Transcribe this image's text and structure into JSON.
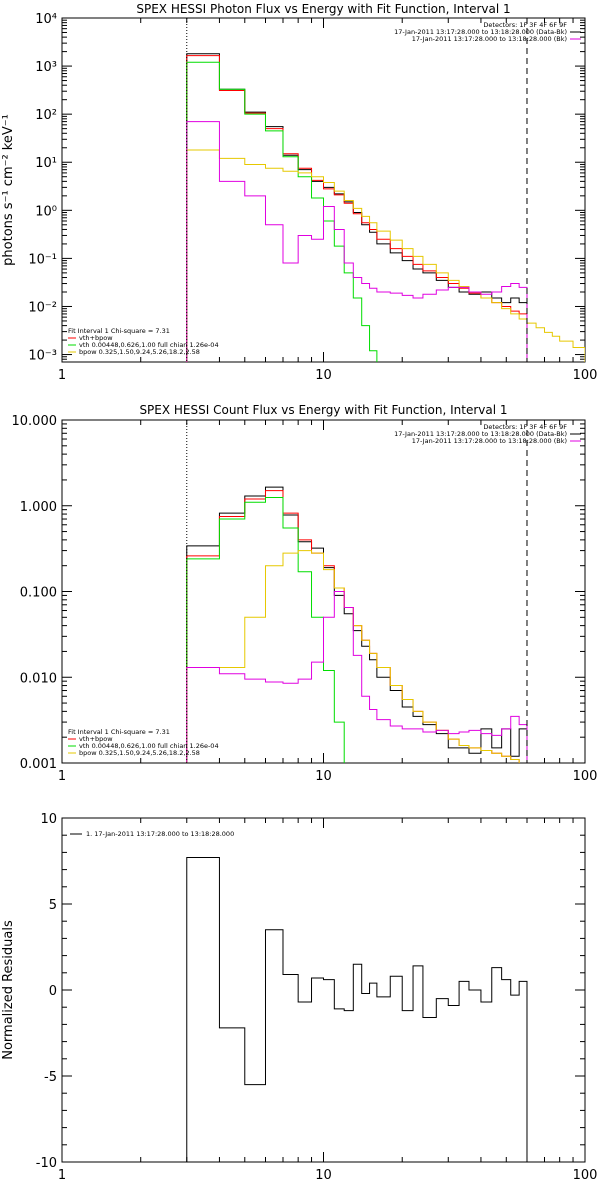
{
  "colors": {
    "total": "#000000",
    "fit_total": "#ff0000",
    "vth": "#00dd00",
    "bpow": "#e6c800",
    "background": "#e000e0",
    "axes": "#000000",
    "page": "#ffffff"
  },
  "chart_data": [
    {
      "type": "line",
      "style": "histogram",
      "title": "SPEX HESSI Photon Flux vs Energy with Fit Function, Interval 1",
      "xlabel": "",
      "ylabel": "photons s⁻¹ cm⁻² keV⁻¹",
      "xscale": "log",
      "yscale": "log",
      "xlim": [
        1,
        100
      ],
      "ylim": [
        0.0007,
        10000
      ],
      "x_ticks": [
        1,
        10,
        100
      ],
      "x_tick_labels": [
        "1",
        "10",
        "100"
      ],
      "y_ticks": [
        0.001,
        0.01,
        0.1,
        1,
        10,
        100,
        1000,
        10000
      ],
      "y_tick_labels": [
        "10⁻³",
        "10⁻²",
        "10⁻¹",
        "10⁰",
        "10¹",
        "10²",
        "10³",
        "10⁴"
      ],
      "bin_edges": [
        3,
        4,
        5,
        6,
        7,
        8,
        9,
        10,
        11,
        12,
        13,
        14,
        15,
        16,
        18,
        20,
        22,
        24,
        27,
        30,
        33,
        36,
        40,
        44,
        48,
        52,
        56,
        60,
        65,
        70,
        75,
        80,
        90,
        100
      ],
      "vlines": [
        {
          "x": 3,
          "style": "dotted"
        },
        {
          "x": 60,
          "style": "dashed"
        }
      ],
      "legend": {
        "position": "top-right",
        "header": "Detectors: 1F 3F 4F 6F 9F",
        "entries": [
          "17-Jan-2011 13:17:28.000 to 13:18:28.000 (Data-Bk)",
          "17-Jan-2011 13:17:28.000 to 13:18:28.000 (Bk)"
        ]
      },
      "fit_legend": {
        "position": "bottom-left",
        "header": "Fit Interval  1    Chi-square = 7.31",
        "entries": [
          "vth+bpow",
          "vth 0.00448,0.626,1.00   full chian 1.26e-04",
          "bpow 0.325,1.50,9.24,5.26,18.2,2.58"
        ]
      },
      "series": [
        {
          "name": "17-Jan-2011 13:17:28.000 to 13:18:28.000 (Data-Bk)",
          "color": "#000000",
          "values": [
            1800,
            330,
            110,
            55,
            14,
            7,
            4,
            3,
            2.2,
            1.5,
            0.9,
            0.5,
            0.35,
            0.2,
            0.13,
            0.09,
            0.06,
            0.05,
            0.035,
            0.025,
            0.02,
            0.018,
            0.02,
            0.015,
            0.012,
            0.015,
            0.012
          ]
        },
        {
          "name": "vth+bpow",
          "color": "#ff0000",
          "values": [
            1650,
            310,
            105,
            50,
            15,
            7.5,
            4.2,
            2.8,
            2.1,
            1.4,
            0.85,
            0.55,
            0.4,
            0.25,
            0.16,
            0.11,
            0.075,
            0.055,
            0.04,
            0.03,
            0.024,
            0.019,
            0.015,
            0.012,
            0.01,
            0.008,
            0.007
          ]
        },
        {
          "name": "vth",
          "color": "#00dd00",
          "values": [
            1200,
            330,
            100,
            45,
            13,
            5,
            1.8,
            0.6,
            0.18,
            0.05,
            0.015,
            0.004,
            0.0012,
            0.0003
          ]
        },
        {
          "name": "bpow",
          "color": "#e6c800",
          "values": [
            18,
            12,
            9,
            7.5,
            6.5,
            6,
            5,
            3.8,
            2.5,
            1.6,
            1.1,
            0.75,
            0.55,
            0.37,
            0.24,
            0.16,
            0.11,
            0.075,
            0.05,
            0.035,
            0.026,
            0.02,
            0.015,
            0.012,
            0.009,
            0.007,
            0.0055,
            0.0045,
            0.0036,
            0.0029,
            0.0024,
            0.0019,
            0.0014
          ]
        },
        {
          "name": "17-Jan-2011 13:17:28.000 to 13:18:28.000 (Bk)",
          "color": "#e000e0",
          "values": [
            70,
            4,
            2,
            0.5,
            0.08,
            0.3,
            0.25,
            1.2,
            0.4,
            0.08,
            0.04,
            0.03,
            0.024,
            0.02,
            0.019,
            0.017,
            0.015,
            0.018,
            0.022,
            0.025,
            0.025,
            0.02,
            0.018,
            0.02,
            0.026,
            0.03,
            0.025
          ]
        }
      ]
    },
    {
      "type": "line",
      "style": "histogram",
      "title": "SPEX HESSI Count Flux vs Energy with Fit Function, Interval 1",
      "xlabel": "",
      "ylabel": "",
      "xscale": "log",
      "yscale": "log",
      "xlim": [
        1,
        100
      ],
      "ylim": [
        0.001,
        10
      ],
      "x_ticks": [
        1,
        10,
        100
      ],
      "x_tick_labels": [
        "1",
        "10",
        "100"
      ],
      "y_ticks": [
        0.001,
        0.01,
        0.1,
        1,
        10
      ],
      "y_tick_labels": [
        "0.001",
        "0.010",
        "0.100",
        "1.000",
        "10.000"
      ],
      "bin_edges": [
        3,
        4,
        5,
        6,
        7,
        8,
        9,
        10,
        11,
        12,
        13,
        14,
        15,
        16,
        18,
        20,
        22,
        24,
        27,
        30,
        33,
        36,
        40,
        44,
        48,
        52,
        56,
        60
      ],
      "vlines": [
        {
          "x": 3,
          "style": "dotted"
        },
        {
          "x": 60,
          "style": "dashed"
        }
      ],
      "legend": {
        "position": "top-right",
        "header": "Detectors: 1F 3F 4F 6F 9F",
        "entries": [
          "17-Jan-2011 13:17:28.000 to 13:18:28.000 (Data-Bk)",
          "17-Jan-2011 13:17:28.000 to 13:18:28.000 (Bk)"
        ]
      },
      "fit_legend": {
        "position": "bottom-left",
        "header": "Fit Interval  1    Chi-square = 7.31",
        "entries": [
          "vth+bpow",
          "vth 0.00448,0.626,1.00   full chian 1.26e-04",
          "bpow 0.325,1.50,9.24,5.26,18.2,2.58"
        ]
      },
      "series": [
        {
          "name": "17-Jan-2011 13:17:28.000 to 13:18:28.000 (Data-Bk)",
          "color": "#000000",
          "values": [
            0.34,
            0.82,
            1.3,
            1.65,
            0.78,
            0.38,
            0.32,
            0.19,
            0.09,
            0.055,
            0.035,
            0.023,
            0.016,
            0.01,
            0.007,
            0.0045,
            0.0035,
            0.0028,
            0.0022,
            0.0015,
            0.0015,
            0.0013,
            0.0025,
            0.0015,
            0.0025,
            0.0012,
            0.0025
          ]
        },
        {
          "name": "vth+bpow",
          "color": "#ff0000",
          "values": [
            0.26,
            0.75,
            1.2,
            1.5,
            0.82,
            0.4,
            0.28,
            0.2,
            0.11,
            0.065,
            0.04,
            0.027,
            0.019,
            0.013,
            0.008,
            0.0055,
            0.004,
            0.003,
            0.0024,
            0.0019,
            0.0016,
            0.0015,
            0.0014,
            0.0013,
            0.0012,
            0.0011,
            0.001
          ]
        },
        {
          "name": "vth",
          "color": "#00dd00",
          "values": [
            0.24,
            0.7,
            1.1,
            1.25,
            0.55,
            0.17,
            0.05,
            0.012,
            0.003,
            0.0009
          ]
        },
        {
          "name": "bpow",
          "color": "#e6c800",
          "values": [
            0.013,
            0.013,
            0.05,
            0.2,
            0.28,
            0.3,
            0.28,
            0.18,
            0.11,
            0.065,
            0.04,
            0.027,
            0.019,
            0.013,
            0.008,
            0.0055,
            0.004,
            0.003,
            0.0024,
            0.0019,
            0.0016,
            0.0015,
            0.0014,
            0.0013,
            0.0012,
            0.0011,
            0.001
          ]
        },
        {
          "name": "17-Jan-2011 13:17:28.000 to 13:18:28.000 (Bk)",
          "color": "#e000e0",
          "values": [
            0.013,
            0.011,
            0.0095,
            0.0088,
            0.0085,
            0.0095,
            0.015,
            0.05,
            0.1,
            0.065,
            0.018,
            0.006,
            0.0042,
            0.0032,
            0.0027,
            0.0025,
            0.0025,
            0.0023,
            0.0024,
            0.0022,
            0.0023,
            0.0024,
            0.0022,
            0.0021,
            0.0025,
            0.0035,
            0.0028
          ]
        }
      ]
    },
    {
      "type": "line",
      "style": "histogram",
      "title": "",
      "xlabel": "",
      "ylabel": "Normalized Residuals",
      "xscale": "log",
      "yscale": "linear",
      "xlim": [
        1,
        100
      ],
      "ylim": [
        -10,
        10
      ],
      "x_ticks": [
        1,
        10,
        100
      ],
      "x_tick_labels": [
        "1",
        "10",
        "100"
      ],
      "y_ticks": [
        -10,
        -5,
        0,
        5,
        10
      ],
      "y_tick_labels": [
        "-10",
        "-5",
        "0",
        "5",
        "10"
      ],
      "bin_edges": [
        3,
        4,
        5,
        6,
        7,
        8,
        9,
        10,
        11,
        12,
        13,
        14,
        15,
        16,
        18,
        20,
        22,
        24,
        27,
        30,
        33,
        36,
        40,
        44,
        48,
        52,
        56,
        60
      ],
      "legend": {
        "position": "top-left",
        "header": "",
        "entries": [
          "1. 17-Jan-2011 13:17:28.000 to 13:18:28.000"
        ]
      },
      "series": [
        {
          "name": "1. 17-Jan-2011 13:17:28.000 to 13:18:28.000",
          "color": "#000000",
          "values": [
            7.7,
            -2.2,
            -5.5,
            3.5,
            0.9,
            -0.7,
            0.7,
            0.6,
            -1.1,
            -1.2,
            1.5,
            -0.2,
            0.4,
            -0.4,
            0.8,
            -1.2,
            1.4,
            -1.6,
            -0.5,
            -0.9,
            0.5,
            0.0,
            -0.7,
            1.3,
            0.6,
            -0.3,
            0.5
          ]
        }
      ]
    }
  ]
}
